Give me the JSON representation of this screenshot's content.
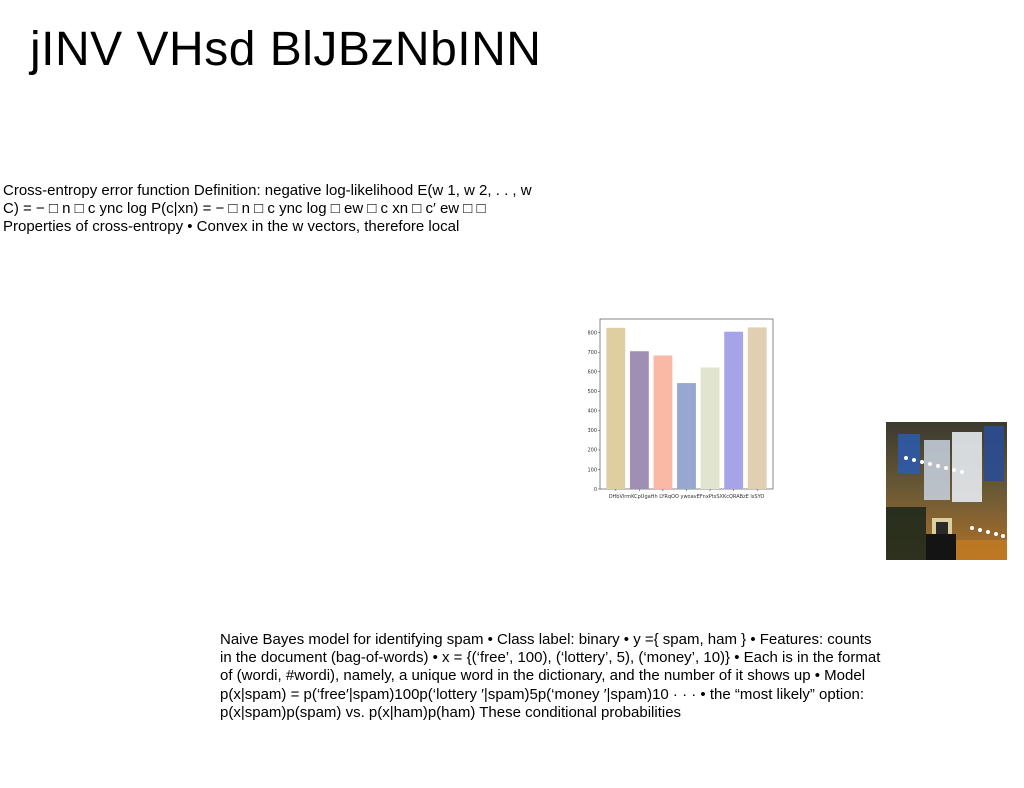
{
  "slide": {
    "title": "jINV VHsd BlJBzNbINN",
    "paragraph_1": "Cross-entropy error function Definition: negative log-likelihood E(w 1, w 2, . . , w C) = − □ n □ c ync log P(c|xn) = − □ n □ c ync log □ ew □ c xn □ c′ ew □ □ Properties of cross-entropy • Convex in the w vectors, therefore local",
    "paragraph_2": "Naive Bayes model for identifying spam • Class label: binary • y ={ spam, ham } • Features: counts in the document (bag-of-words) • x = {(‘free’, 100), (‘lottery’, 5), (‘money’, 10)} • Each is in the format of (wordi, #wordi), namely, a unique word in the dictionary, and the number of it shows up • Model p(x|spam) = p(‘free′|spam)100p(‘lottery ′|spam)5p(‘money ′|spam)10 · · · • the “most likely” option: p(x|spam)p(spam) vs. p(x|ham)p(ham) These conditional probabilities"
  },
  "photo": {
    "icon": "conference-hall-photo"
  },
  "chart_data": {
    "type": "bar",
    "categories": [
      "DHbVlrmK",
      "CpUgaHh",
      "LYRqOO",
      "ywoavEf",
      "nxPtsSXKc",
      "QRABzE",
      "lsSYO"
    ],
    "tick_labels_printed": "DHbVlrmKCpUgaHh  LYRqOO  ywoavEFnxPtsSXKcQRABzE  lsSYO",
    "values": [
      825,
      705,
      683,
      542,
      622,
      805,
      827
    ],
    "colors": [
      "#dfcfa0",
      "#a08fb5",
      "#f9b9a5",
      "#97a7d0",
      "#e1e5cf",
      "#a6a4e6",
      "#e0d0b0"
    ],
    "yticks": [
      0,
      100,
      200,
      300,
      400,
      500,
      600,
      700,
      800
    ],
    "ylim": [
      0,
      870
    ],
    "title": "",
    "xlabel": "",
    "ylabel": "",
    "grid": false
  }
}
